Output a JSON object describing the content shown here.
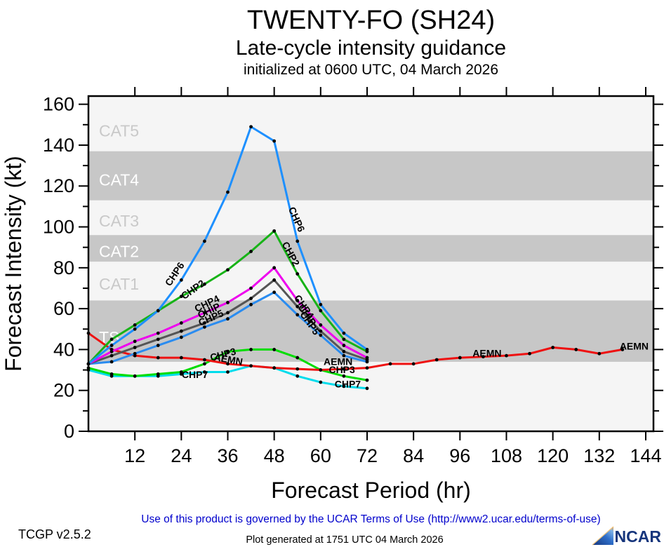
{
  "header": {
    "title": "TWENTY-FO (SH24)",
    "subtitle": "Late-cycle intensity guidance",
    "init_line": "initialized at 0600 UTC, 04 March 2026"
  },
  "footer": {
    "terms": "Use of this product is governed by the UCAR Terms of Use (http://www2.ucar.edu/terms-of-use)",
    "version": "TCGP v2.5.2",
    "generated": "Plot generated at 1751 UTC   04 March 2026",
    "ncar_label": "NCAR"
  },
  "chart_data": {
    "type": "line",
    "title": "TWENTY-FO (SH24)",
    "subtitle": "Late-cycle intensity guidance initialized at 0600 UTC, 04 March 2026",
    "xlabel": "Forecast Period (hr)",
    "ylabel": "Forecast Intensity (kt)",
    "xlim": [
      0,
      146
    ],
    "ylim": [
      0,
      164
    ],
    "x_ticks_major": [
      12,
      24,
      36,
      48,
      60,
      72,
      84,
      96,
      108,
      120,
      132,
      144
    ],
    "y_ticks_major": [
      0,
      20,
      40,
      60,
      80,
      100,
      120,
      140,
      160
    ],
    "y_ticks_minor": [
      10,
      30,
      50,
      70,
      90,
      110,
      130,
      150
    ],
    "grid": false,
    "legend": "labels drawn along lines",
    "plot_bg": "#f5f5f5",
    "band_gray": "#c7c7c7",
    "band_label_on_gray": "#ffffff",
    "band_label_on_light": "#c9c9c9",
    "bands": [
      {
        "label": "TS",
        "from": 34,
        "to": 64,
        "shade": "gray",
        "label_v": 46
      },
      {
        "label": "CAT1",
        "from": 64,
        "to": 83,
        "shade": "light",
        "label_v": 72
      },
      {
        "label": "CAT2",
        "from": 83,
        "to": 96,
        "shade": "gray",
        "label_v": 88
      },
      {
        "label": "CAT3",
        "from": 96,
        "to": 113,
        "shade": "light",
        "label_v": 103
      },
      {
        "label": "CAT4",
        "from": 113,
        "to": 137,
        "shade": "gray",
        "label_v": 123
      },
      {
        "label": "CAT5",
        "from": 137,
        "to": 164,
        "shade": "light",
        "label_v": 147
      }
    ],
    "series": [
      {
        "name": "CHP7",
        "color": "#00dcec",
        "x": [
          0,
          6,
          12,
          18,
          24,
          30,
          36,
          42,
          48,
          54,
          60,
          66,
          72
        ],
        "values": [
          30,
          27,
          27,
          27,
          28,
          29,
          29,
          32,
          31,
          27,
          24,
          22,
          21
        ],
        "labels": [
          {
            "t": 27.5,
            "v": 26,
            "rot": 0
          },
          {
            "t": 67,
            "v": 21.5,
            "rot": 0
          }
        ]
      },
      {
        "name": "CHP3",
        "color": "#00dd00",
        "x": [
          0,
          6,
          12,
          18,
          24,
          30,
          36,
          42,
          48,
          54,
          60,
          66,
          72
        ],
        "values": [
          31,
          28,
          27,
          28,
          29,
          33,
          39,
          40,
          40,
          36,
          30,
          27,
          25
        ],
        "labels": [
          {
            "t": 35,
            "v": 36,
            "rot": -15
          },
          {
            "t": 65.5,
            "v": 28.5,
            "rot": 0
          }
        ]
      },
      {
        "name": "AEMN",
        "color": "#ee1111",
        "x": [
          0,
          6,
          12,
          18,
          24,
          30,
          36,
          42,
          48,
          54,
          60,
          66,
          72,
          78,
          84,
          90,
          96,
          102,
          108,
          114,
          120,
          126,
          132,
          138
        ],
        "values": [
          48,
          40,
          37,
          36,
          36,
          35,
          33,
          32,
          31,
          30.5,
          30,
          30.5,
          31,
          33,
          33,
          35,
          36,
          36.5,
          37,
          38,
          41,
          40,
          38,
          40
        ],
        "labels": [
          {
            "t": 36,
            "v": 33.5,
            "rot": 10
          },
          {
            "t": 64.5,
            "v": 32.5,
            "rot": 0
          },
          {
            "t": 103,
            "v": 36.5,
            "rot": 0
          },
          {
            "t": 141,
            "v": 40,
            "rot": 0
          }
        ]
      },
      {
        "name": "CHP5",
        "color": "#2a8cf0",
        "x": [
          0,
          6,
          12,
          18,
          24,
          30,
          36,
          42,
          48,
          54,
          60,
          66,
          72
        ],
        "values": [
          33,
          34,
          38,
          42,
          46,
          51,
          55,
          62,
          68,
          57,
          47,
          37,
          34
        ],
        "labels": [
          {
            "t": 32,
            "v": 54,
            "rot": -24
          },
          {
            "t": 56.5,
            "v": 52,
            "rot": 55
          }
        ]
      },
      {
        "name": "CHIP",
        "color": "#555555",
        "x": [
          0,
          6,
          12,
          18,
          24,
          30,
          36,
          42,
          48,
          54,
          60,
          66,
          72
        ],
        "values": [
          33,
          37,
          41,
          45,
          49,
          53,
          58,
          65,
          74,
          61,
          49,
          39,
          35
        ],
        "labels": [
          {
            "t": 31.5,
            "v": 57.5,
            "rot": -25
          },
          {
            "t": 55.8,
            "v": 56,
            "rot": 55
          }
        ]
      },
      {
        "name": "CHP4",
        "color": "#ee00ee",
        "x": [
          0,
          6,
          12,
          18,
          24,
          30,
          36,
          42,
          48,
          54,
          60,
          66,
          72
        ],
        "values": [
          33,
          39,
          44,
          48,
          53,
          58,
          63,
          70,
          80,
          64,
          52,
          42,
          36
        ],
        "labels": [
          {
            "t": 31,
            "v": 61,
            "rot": -26
          },
          {
            "t": 55,
            "v": 60,
            "rot": 55
          }
        ]
      },
      {
        "name": "CHP2",
        "color": "#17b317",
        "x": [
          0,
          6,
          12,
          18,
          24,
          30,
          36,
          42,
          48,
          54,
          60,
          66,
          72
        ],
        "values": [
          33,
          45,
          52,
          59,
          66,
          72,
          79,
          88,
          98,
          77,
          59,
          45,
          39
        ],
        "labels": [
          {
            "t": 27.5,
            "v": 68,
            "rot": -35
          },
          {
            "t": 51.5,
            "v": 86,
            "rot": 62
          }
        ]
      },
      {
        "name": "CHP6",
        "color": "#1e90ff",
        "x": [
          0,
          6,
          12,
          18,
          24,
          30,
          36,
          42,
          48,
          54,
          60,
          66,
          72
        ],
        "values": [
          33,
          42,
          50,
          59,
          74,
          93,
          117,
          149,
          142,
          93,
          62,
          48,
          40
        ],
        "labels": [
          {
            "t": 23,
            "v": 76,
            "rot": -56
          },
          {
            "t": 53,
            "v": 103,
            "rot": 66
          }
        ]
      }
    ]
  }
}
